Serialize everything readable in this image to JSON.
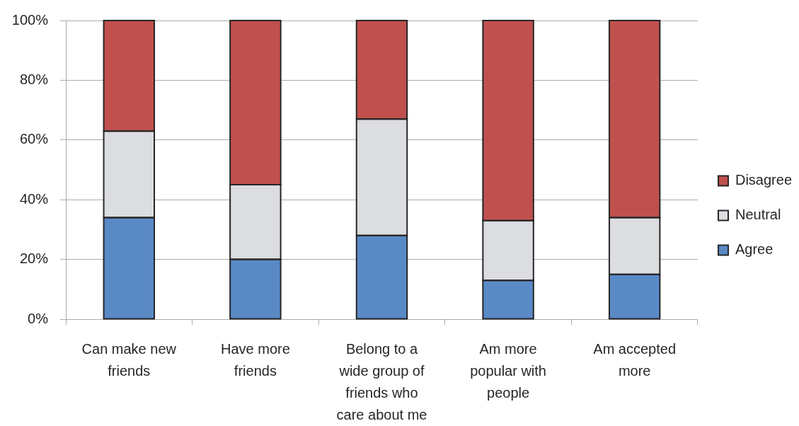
{
  "chart_data": {
    "type": "bar",
    "stacked": true,
    "categories": [
      "Can make new friends",
      "Have more friends",
      "Belong to a wide group of friends who care about me",
      "Am more popular with people",
      "Am accepted more"
    ],
    "series": [
      {
        "name": "Agree",
        "color": "#5a8ac6",
        "values": [
          34,
          20,
          28,
          13,
          15
        ]
      },
      {
        "name": "Neutral",
        "color": "#dcdde0",
        "values": [
          29,
          25,
          39,
          20,
          19
        ]
      },
      {
        "name": "Disagree",
        "color": "#c0504e",
        "values": [
          37,
          55,
          33,
          67,
          66
        ]
      }
    ],
    "ylim": [
      0,
      100
    ],
    "yticks": [
      {
        "value": 0,
        "label": "0%"
      },
      {
        "value": 20,
        "label": "20%"
      },
      {
        "value": 40,
        "label": "40%"
      },
      {
        "value": 60,
        "label": "60%"
      },
      {
        "value": 80,
        "label": "80%"
      },
      {
        "value": 100,
        "label": "100%"
      }
    ],
    "grid": "y",
    "legend": "right"
  }
}
